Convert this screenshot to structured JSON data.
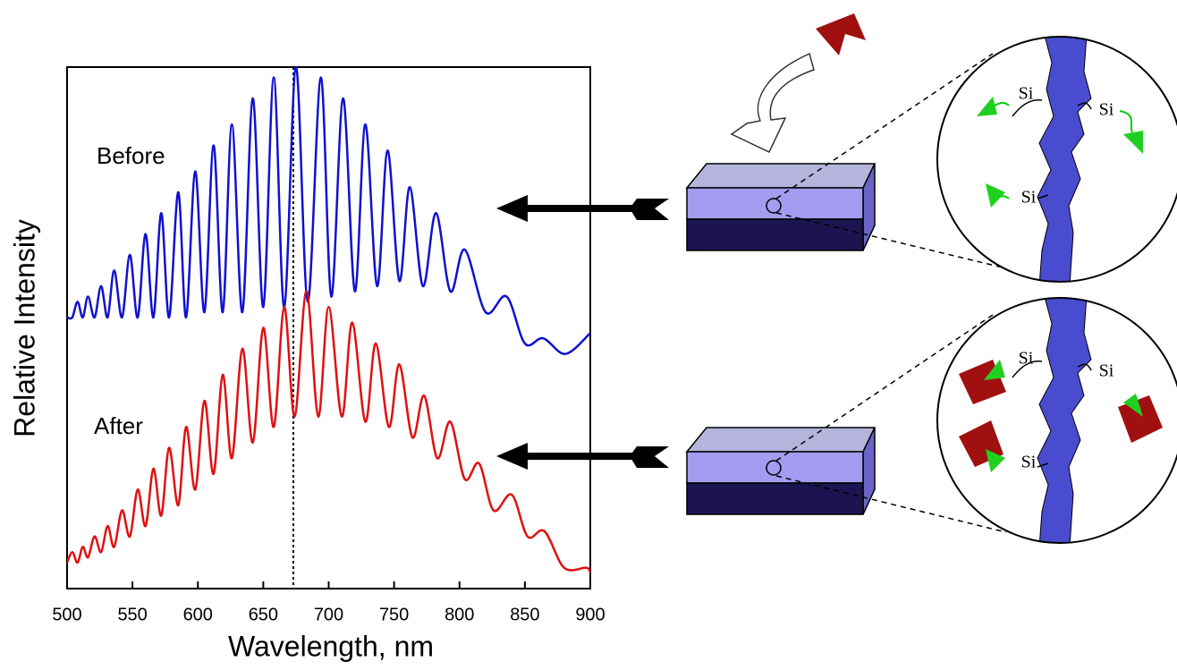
{
  "chart_data": {
    "type": "line",
    "xlabel": "Wavelength, nm",
    "ylabel": "Relative Intensity",
    "xlim": [
      500,
      900
    ],
    "xticks": [
      500,
      550,
      600,
      650,
      700,
      750,
      800,
      850,
      900
    ],
    "ylim": [
      0,
      1
    ],
    "reference_x": 673,
    "annotations": [
      "Before",
      "After"
    ],
    "series": [
      {
        "name": "Before",
        "color": "#1010d0",
        "x": [
          500,
          504,
          508,
          512,
          516,
          521,
          526,
          531,
          536,
          542,
          548,
          554,
          560,
          566,
          572,
          578,
          585,
          591,
          598,
          605,
          612,
          619,
          626,
          634,
          642,
          650,
          658,
          666,
          675,
          684,
          694,
          702,
          711,
          720,
          728,
          737,
          745,
          754,
          762,
          772,
          782,
          793,
          804,
          820,
          836,
          850,
          864,
          881,
          900
        ],
        "values": [
          0.52,
          0.52,
          0.55,
          0.52,
          0.56,
          0.52,
          0.58,
          0.52,
          0.61,
          0.52,
          0.64,
          0.52,
          0.68,
          0.52,
          0.72,
          0.52,
          0.76,
          0.52,
          0.8,
          0.53,
          0.85,
          0.53,
          0.89,
          0.53,
          0.94,
          0.54,
          0.98,
          0.54,
          1.0,
          0.55,
          0.98,
          0.56,
          0.94,
          0.57,
          0.89,
          0.58,
          0.84,
          0.59,
          0.77,
          0.58,
          0.72,
          0.57,
          0.65,
          0.53,
          0.56,
          0.47,
          0.48,
          0.45,
          0.49
        ]
      },
      {
        "name": "After",
        "color": "#e01010",
        "x": [
          500,
          504,
          508,
          512,
          516,
          521,
          526,
          531,
          536,
          542,
          548,
          554,
          560,
          566,
          572,
          578,
          585,
          591,
          598,
          605,
          612,
          619,
          626,
          634,
          642,
          650,
          658,
          666,
          674,
          683,
          692,
          700,
          710,
          718,
          728,
          736,
          746,
          754,
          764,
          773,
          783,
          793,
          804,
          815,
          826,
          840,
          852,
          865,
          880,
          897,
          900
        ],
        "values": [
          0.05,
          0.07,
          0.05,
          0.08,
          0.06,
          0.1,
          0.07,
          0.12,
          0.08,
          0.15,
          0.1,
          0.19,
          0.12,
          0.23,
          0.14,
          0.27,
          0.16,
          0.31,
          0.19,
          0.36,
          0.22,
          0.41,
          0.25,
          0.46,
          0.28,
          0.5,
          0.31,
          0.54,
          0.33,
          0.57,
          0.33,
          0.54,
          0.33,
          0.51,
          0.32,
          0.47,
          0.31,
          0.43,
          0.29,
          0.37,
          0.25,
          0.32,
          0.21,
          0.24,
          0.15,
          0.18,
          0.1,
          0.11,
          0.04,
          0.04,
          0.03
        ]
      }
    ]
  },
  "diagram": {
    "top_circle": {
      "labels": [
        "Si",
        "Si",
        "Si"
      ]
    },
    "bottom_circle": {
      "labels": [
        "Si",
        "Si",
        "Si"
      ]
    }
  }
}
